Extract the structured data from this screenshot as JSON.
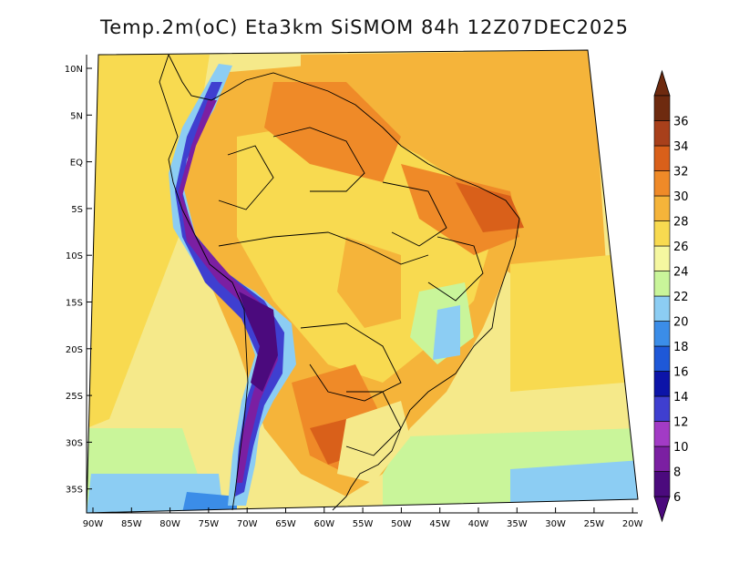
{
  "title": "Temp.2m(oC) Eta3km SiSMOM 84h 12Z07DEC2025",
  "map": {
    "lat_labels": [
      "10N",
      "5N",
      "EQ",
      "5S",
      "10S",
      "15S",
      "20S",
      "25S",
      "30S",
      "35S"
    ],
    "lon_labels": [
      "90W",
      "85W",
      "80W",
      "75W",
      "70W",
      "65W",
      "60W",
      "55W",
      "50W",
      "45W",
      "40W",
      "35W",
      "30W",
      "25W",
      "20W"
    ],
    "lat_range": [
      -38,
      11
    ],
    "lon_range": [
      -91,
      -20
    ]
  },
  "colorbar": {
    "labels": [
      "6",
      "8",
      "10",
      "12",
      "14",
      "16",
      "18",
      "20",
      "22",
      "24",
      "26",
      "28",
      "30",
      "32",
      "34",
      "36"
    ],
    "colors": [
      "#4b0a7d",
      "#7b1fa2",
      "#a23bc5",
      "#3f3fd0",
      "#0c14a8",
      "#1e58d8",
      "#3b8de8",
      "#8ccdf3",
      "#c9f59a",
      "#f5f7a0",
      "#f8da50",
      "#f5b43a",
      "#ef8a28",
      "#d9601a",
      "#a8401b",
      "#6e2a0f"
    ]
  }
}
